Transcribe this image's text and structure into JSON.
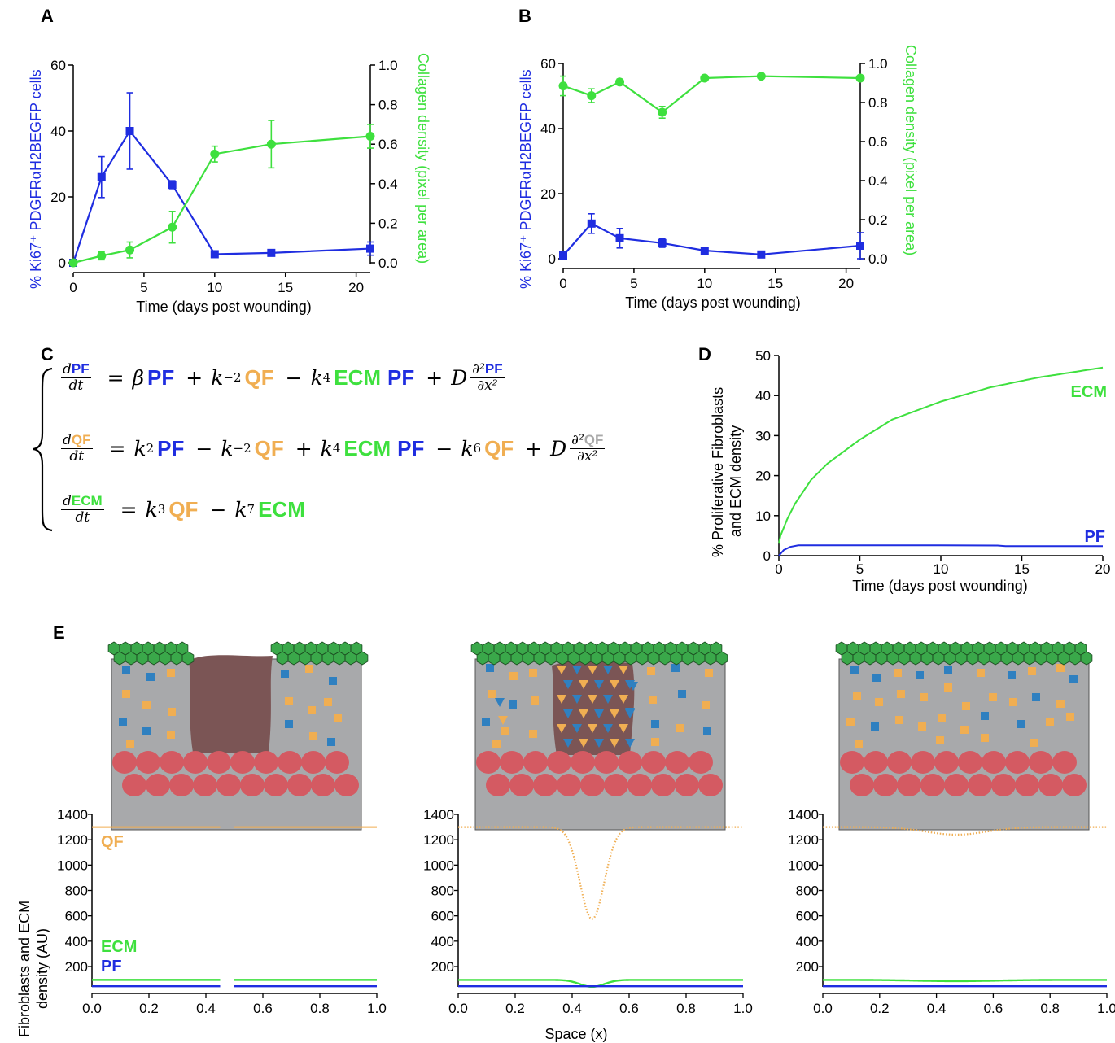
{
  "panel_labels": {
    "a": "A",
    "b": "B",
    "c": "C",
    "d": "D",
    "e": "E"
  },
  "colors": {
    "pf": "#1f2de0",
    "qf": "#f0ae52",
    "ecm": "#3ee03e",
    "blue_marker": "#1f2de0",
    "green_marker": "#3ee03e"
  },
  "axis_text": {
    "left_y_ab": "% Ki67⁺ PDGFRαH2BEGFP cells",
    "right_y_ab": "Collagen density (pixel per area)",
    "x_time": "Time (days post wounding)",
    "d_y_line1": "% Proliferative Fibroblasts",
    "d_y_line2": "and ECM density",
    "e_y_line1": "Fibroblasts and ECM",
    "e_y_line2": "density (AU)",
    "e_x": "Space (x)"
  },
  "equations": {
    "eq1": {
      "lhs_var": "PF",
      "rhs": [
        "β",
        "PF",
        "+",
        "k",
        "−2",
        "QF",
        "−",
        "k",
        "4",
        "ECM",
        "PF",
        "+",
        "D",
        "PF"
      ]
    },
    "eq2": {
      "lhs_var": "QF"
    },
    "eq3": {
      "lhs_var": "ECM"
    },
    "d": "d",
    "dt": "dt",
    "dx2": "∂x²",
    "d2": "∂²"
  },
  "chart_data": [
    {
      "panel": "A",
      "type": "line",
      "x_ticks": [
        0,
        5,
        10,
        15,
        20
      ],
      "xlim": [
        0,
        21
      ],
      "left_ylim": [
        0,
        60
      ],
      "left_ticks": [
        0,
        20,
        40,
        60
      ],
      "right_ylim": [
        0,
        1.0
      ],
      "right_ticks": [
        "0.0",
        "0.2",
        "0.4",
        "0.6",
        "0.8",
        "1.0"
      ],
      "series": [
        {
          "name": "Ki67 PDGFRα cells",
          "axis": "left",
          "marker": "square",
          "x": [
            0,
            2,
            4,
            7,
            10,
            14,
            21
          ],
          "y": [
            0,
            26,
            40,
            23.7,
            2.6,
            3,
            4.3
          ],
          "err": [
            0,
            6.2,
            11.6,
            1.2,
            0.6,
            0.6,
            2
          ]
        },
        {
          "name": "Collagen density",
          "axis": "right",
          "marker": "circle",
          "x": [
            0,
            2,
            4,
            7,
            10,
            14,
            21
          ],
          "y": [
            0,
            0.035,
            0.065,
            0.18,
            0.55,
            0.6,
            0.64
          ],
          "err": [
            0,
            0.02,
            0.04,
            0.08,
            0.04,
            0.12,
            0.06
          ]
        }
      ]
    },
    {
      "panel": "B",
      "type": "line",
      "x_ticks": [
        0,
        5,
        10,
        15,
        20
      ],
      "xlim": [
        0,
        21
      ],
      "left_ylim": [
        0,
        60
      ],
      "left_ticks": [
        0,
        20,
        40,
        60
      ],
      "right_ylim": [
        0,
        1.0
      ],
      "right_ticks": [
        "0.0",
        "0.2",
        "0.4",
        "0.6",
        "0.8",
        "1.0"
      ],
      "series": [
        {
          "name": "Ki67 PDGFRα cells",
          "axis": "left",
          "marker": "square",
          "x": [
            0,
            2,
            4,
            7,
            10,
            14,
            21
          ],
          "y": [
            1,
            10.8,
            6.3,
            4.8,
            2.5,
            1.3,
            4
          ],
          "err": [
            0,
            3,
            3,
            1.3,
            0.5,
            0.5,
            4
          ]
        },
        {
          "name": "Collagen density",
          "axis": "right",
          "marker": "circle",
          "x": [
            0,
            2,
            4,
            7,
            10,
            14,
            21
          ],
          "y": [
            0.885,
            0.835,
            0.905,
            0.75,
            0.925,
            0.935,
            0.925
          ],
          "err": [
            0.05,
            0.035,
            0.015,
            0.03,
            0.01,
            0.01,
            0.01
          ]
        }
      ]
    },
    {
      "panel": "D",
      "type": "line",
      "x_ticks": [
        0,
        5,
        10,
        15,
        20
      ],
      "xlim": [
        0,
        20
      ],
      "ylim": [
        0,
        50
      ],
      "y_ticks": [
        0,
        10,
        20,
        30,
        40,
        50
      ],
      "series": [
        {
          "name": "ECM",
          "label": "ECM",
          "x": [
            0,
            0.1,
            0.5,
            1,
            2,
            3,
            5,
            7,
            10,
            13,
            16,
            20
          ],
          "y": [
            3,
            5,
            9,
            13,
            19,
            23,
            29,
            34,
            38.5,
            42,
            44.5,
            47
          ]
        },
        {
          "name": "PF",
          "label": "PF",
          "x": [
            0,
            0.3,
            0.7,
            1.2,
            2,
            5,
            10,
            13.5,
            14,
            20
          ],
          "y": [
            0,
            1.4,
            2.2,
            2.6,
            2.6,
            2.6,
            2.6,
            2.55,
            2.4,
            2.4
          ]
        }
      ]
    },
    {
      "panel": "E",
      "type": "line",
      "x_ticks": [
        "0.0",
        "0.2",
        "0.4",
        "0.6",
        "0.8",
        "1.0"
      ],
      "xlim": [
        0,
        1
      ],
      "ylim": [
        0,
        1400
      ],
      "y_ticks": [
        200,
        400,
        600,
        800,
        1000,
        1200,
        1400
      ],
      "labels": {
        "qf": "QF",
        "ecm": "ECM",
        "pf": "PF"
      },
      "subplots": [
        {
          "qf_level": 1300,
          "qf_gap": [
            0.45,
            0.5
          ],
          "ecm_level": 95,
          "pf_level": 45,
          "qf_dip_min": null
        },
        {
          "qf_level": 1300,
          "qf_dip_center": 0.47,
          "qf_dip_min": 575,
          "qf_dip_width": 0.06,
          "ecm_level": 95,
          "ecm_dip_min": 40,
          "pf_level": 45
        },
        {
          "qf_level": 1300,
          "qf_dip_center": 0.47,
          "qf_dip_min": 1240,
          "qf_dip_width": 0.15,
          "ecm_level": 95,
          "ecm_dip_min": 85,
          "pf_level": 45
        }
      ]
    }
  ]
}
